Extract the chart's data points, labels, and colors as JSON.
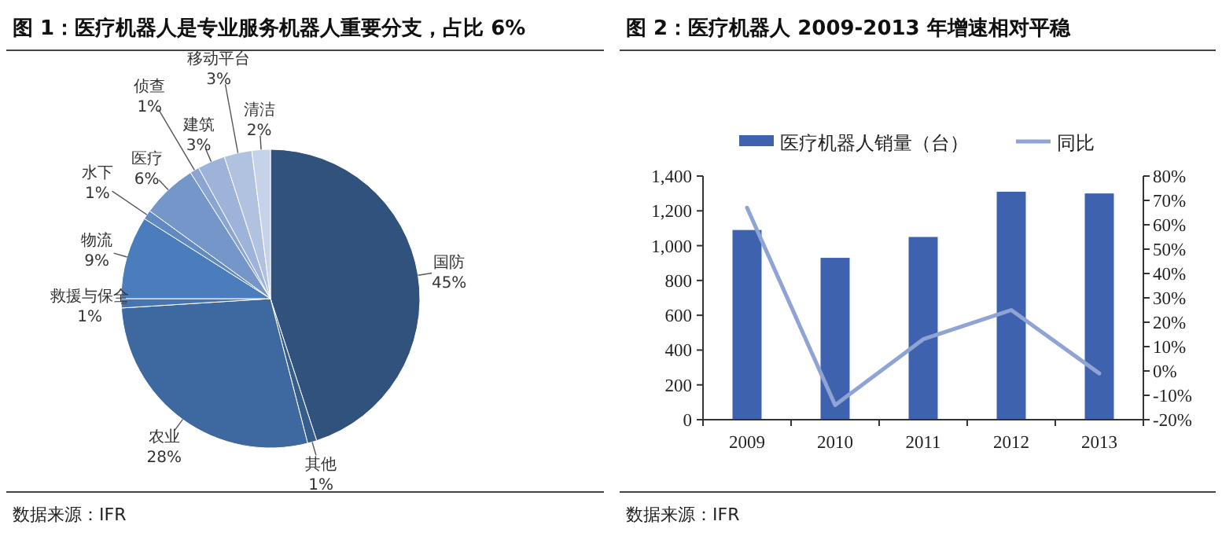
{
  "chart_data": [
    {
      "type": "pie",
      "title": "图 1：医疗机器人是专业服务机器人重要分支，占比 6%",
      "categories": [
        "国防",
        "其他",
        "农业",
        "救援与保全",
        "物流",
        "水下",
        "医疗",
        "侦查",
        "建筑",
        "移动平台",
        "清洁"
      ],
      "values": [
        45,
        1,
        28,
        1,
        9,
        1,
        6,
        1,
        3,
        3,
        2
      ],
      "value_labels": [
        "45%",
        "1%",
        "28%",
        "1%",
        "9%",
        "1%",
        "6%",
        "1%",
        "3%",
        "3%",
        "2%"
      ],
      "colors": [
        "#30527d",
        "#365d8c",
        "#3e68a0",
        "#4675b1",
        "#4b7dbd",
        "#6189c2",
        "#7596c9",
        "#8aa5d1",
        "#9db3d9",
        "#b1c2e1",
        "#c6d2e9"
      ],
      "annotations": [
        "数据来源：IFR"
      ]
    },
    {
      "type": "bar",
      "title": "图 2：医疗机器人 2009-2013 年增速相对平稳",
      "categories": [
        "2009",
        "2010",
        "2011",
        "2012",
        "2013"
      ],
      "series": [
        {
          "name": "医疗机器人销量（台）",
          "type": "bar",
          "color": "#3f62ae",
          "values": [
            1090,
            930,
            1050,
            1310,
            1300
          ]
        },
        {
          "name": "同比",
          "type": "line",
          "axis": "y2",
          "color": "#8fa3d4",
          "values": [
            67,
            -14,
            13,
            25,
            -1
          ]
        }
      ],
      "ylim": [
        0,
        1400
      ],
      "yticks": [
        0,
        200,
        400,
        600,
        800,
        {
          "value": 1000,
          "label": "1,000"
        },
        {
          "value": 1200,
          "label": "1,200"
        },
        {
          "value": 1400,
          "label": "1,400"
        }
      ],
      "y2lim": [
        -20,
        80
      ],
      "y2ticks": [
        {
          "value": -20,
          "label": "-20%"
        },
        {
          "value": -10,
          "label": "-10%"
        },
        {
          "value": 0,
          "label": "0%"
        },
        {
          "value": 10,
          "label": "10%"
        },
        {
          "value": 20,
          "label": "20%"
        },
        {
          "value": 30,
          "label": "30%"
        },
        {
          "value": 40,
          "label": "40%"
        },
        {
          "value": 50,
          "label": "50%"
        },
        {
          "value": 60,
          "label": "60%"
        },
        {
          "value": 70,
          "label": "70%"
        },
        {
          "value": 80,
          "label": "80%"
        }
      ],
      "grid": false,
      "legend": "top",
      "marker": "none",
      "line_style": "solid",
      "annotations": [
        "数据来源：IFR"
      ]
    }
  ]
}
